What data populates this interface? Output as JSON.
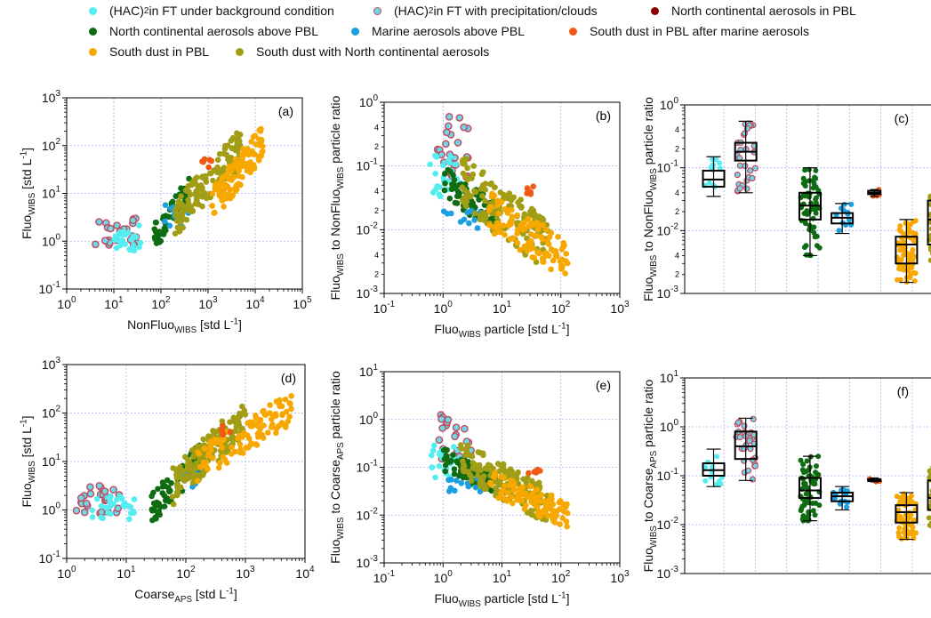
{
  "colors": {
    "hac_bg": "#55eef0",
    "hac_precip": "#6fd8e6",
    "ring": "#c04a60",
    "nc_pbl": "#8b0000",
    "nc_above": "#0f6c12",
    "marine": "#1a9fe0",
    "dust_after_marine": "#f05a14",
    "dust_pbl": "#f7a800",
    "dust_nc": "#a19d14",
    "grid": "#aab0ee"
  },
  "legend": [
    {
      "id": "hac_bg",
      "pre": "(HAC)",
      "sup": "2",
      "post": " in FT under background condition",
      "color": "#55eef0",
      "ring": false
    },
    {
      "id": "hac_precip",
      "pre": "(HAC)",
      "sup": "2",
      "post": " in FT with precipitation/clouds",
      "color": "#6fd8e6",
      "ring": true
    },
    {
      "id": "nc_pbl",
      "pre": "North continental aerosols in PBL",
      "sup": "",
      "post": "",
      "color": "#8b0000",
      "ring": false
    },
    {
      "id": "nc_above",
      "pre": "North continental aerosols above PBL",
      "sup": "",
      "post": "",
      "color": "#0f6c12",
      "ring": false
    },
    {
      "id": "marine",
      "pre": "Marine aerosols above PBL",
      "sup": "",
      "post": "",
      "color": "#1a9fe0",
      "ring": false
    },
    {
      "id": "dust_after_marine",
      "pre": "South dust in PBL after marine aerosols",
      "sup": "",
      "post": "",
      "color": "#f05a14",
      "ring": false
    },
    {
      "id": "dust_pbl",
      "pre": "South dust in PBL",
      "sup": "",
      "post": "",
      "color": "#f7a800",
      "ring": false
    },
    {
      "id": "dust_nc",
      "pre": "South dust with North continental aerosols",
      "sup": "",
      "post": "",
      "color": "#a19d14",
      "ring": false
    }
  ],
  "chart_data": [
    {
      "panel": "(a)",
      "type": "scatter",
      "log": true,
      "xlim": [
        1,
        100000
      ],
      "ylim": [
        0.1,
        1000
      ],
      "xticks": [
        "10^0",
        "10^1",
        "10^2",
        "10^3",
        "10^4",
        "10^5"
      ],
      "yticks": [
        "10^-1",
        "10^0",
        "10^1",
        "10^2",
        "10^3"
      ],
      "xlabel": "NonFluo_WIBS [std L^-1]",
      "ylabel": "Fluo_WIBS [std L^-1]",
      "clusters": [
        {
          "group": "hac_precip",
          "x": [
            4,
            30
          ],
          "y": [
            0.8,
            3.2
          ],
          "n": 26
        },
        {
          "group": "hac_bg",
          "x": [
            10,
            40
          ],
          "y": [
            0.6,
            2.2
          ],
          "n": 28
        },
        {
          "group": "nc_above",
          "x": [
            70,
            400
          ],
          "y": [
            1.2,
            12
          ],
          "n": 70
        },
        {
          "group": "marine",
          "x": [
            120,
            400
          ],
          "y": [
            2,
            6
          ],
          "n": 12
        },
        {
          "group": "dust_nc",
          "x": [
            200,
            5000
          ],
          "y": [
            3,
            90
          ],
          "n": 150
        },
        {
          "group": "dust_pbl",
          "x": [
            1200,
            15000
          ],
          "y": [
            6,
            130
          ],
          "n": 110
        },
        {
          "group": "dust_after_marine",
          "x": [
            700,
            1200
          ],
          "y": [
            35,
            60
          ],
          "n": 6
        }
      ]
    },
    {
      "panel": "(b)",
      "type": "scatter",
      "log": true,
      "xlim": [
        0.1,
        1000
      ],
      "ylim": [
        0.001,
        1
      ],
      "xticks": [
        "10^-1",
        "10^0",
        "10^1",
        "10^2",
        "10^3"
      ],
      "yticks": [
        "10^-3",
        "10^-2",
        "10^-1",
        "10^0"
      ],
      "xlabel": "Fluo_WIBS particle [std L^-1]",
      "ylabel": "Fluo_WIBS to NonFluo_WIBS particle ratio",
      "clusters": [
        {
          "group": "hac_precip",
          "x": [
            0.8,
            3
          ],
          "y": [
            0.06,
            0.6
          ],
          "n": 24
        },
        {
          "group": "hac_bg",
          "x": [
            0.6,
            2
          ],
          "y": [
            0.03,
            0.15
          ],
          "n": 22
        },
        {
          "group": "nc_above",
          "x": [
            1,
            8
          ],
          "y": [
            0.008,
            0.06
          ],
          "n": 70
        },
        {
          "group": "marine",
          "x": [
            1,
            5
          ],
          "y": [
            0.008,
            0.02
          ],
          "n": 12
        },
        {
          "group": "dust_nc",
          "x": [
            2,
            60
          ],
          "y": [
            0.002,
            0.06
          ],
          "n": 150
        },
        {
          "group": "dust_pbl",
          "x": [
            6,
            130
          ],
          "y": [
            0.0015,
            0.02
          ],
          "n": 110
        },
        {
          "group": "dust_after_marine",
          "x": [
            25,
            45
          ],
          "y": [
            0.035,
            0.05
          ],
          "n": 6
        }
      ]
    },
    {
      "panel": "(c)",
      "type": "box",
      "log": true,
      "ylim": [
        0.001,
        1
      ],
      "yticks": [
        "10^-3",
        "10^-2",
        "10^-1",
        "10^0"
      ],
      "ylabel": "Fluo_WIBS to NonFluo_WIBS particle ratio",
      "boxes": [
        {
          "group": "hac_bg",
          "min": 0.035,
          "q1": 0.05,
          "median": 0.065,
          "q3": 0.09,
          "max": 0.15
        },
        {
          "group": "hac_precip",
          "min": 0.04,
          "q1": 0.13,
          "median": 0.18,
          "q3": 0.25,
          "max": 0.55
        },
        {
          "group": "nc_above",
          "min": 0.004,
          "q1": 0.015,
          "median": 0.025,
          "q3": 0.04,
          "max": 0.1
        },
        {
          "group": "marine",
          "min": 0.009,
          "q1": 0.013,
          "median": 0.016,
          "q3": 0.019,
          "max": 0.027
        },
        {
          "group": "dust_after_marine",
          "min": 0.035,
          "q1": 0.038,
          "median": 0.04,
          "q3": 0.043,
          "max": 0.045
        },
        {
          "group": "dust_pbl",
          "min": 0.0015,
          "q1": 0.003,
          "median": 0.006,
          "q3": 0.008,
          "max": 0.015
        },
        {
          "group": "dust_nc",
          "min": 0.003,
          "q1": 0.006,
          "median": 0.015,
          "q3": 0.03,
          "max": 0.05
        }
      ]
    },
    {
      "panel": "(d)",
      "type": "scatter",
      "log": true,
      "xlim": [
        1,
        10000
      ],
      "ylim": [
        0.1,
        1000
      ],
      "xticks": [
        "10^0",
        "10^1",
        "10^2",
        "10^3",
        "10^4"
      ],
      "yticks": [
        "10^-1",
        "10^0",
        "10^1",
        "10^2",
        "10^3"
      ],
      "xlabel": "Coarse_APS  [std L^-1]",
      "ylabel": "Fluo_WIBS [std L^-1]",
      "clusters": [
        {
          "group": "hac_precip",
          "x": [
            1.3,
            8
          ],
          "y": [
            0.8,
            3.2
          ],
          "n": 26
        },
        {
          "group": "hac_bg",
          "x": [
            2.5,
            15
          ],
          "y": [
            0.6,
            2
          ],
          "n": 28
        },
        {
          "group": "nc_above",
          "x": [
            25,
            200
          ],
          "y": [
            1,
            15
          ],
          "n": 70
        },
        {
          "group": "marine",
          "x": [
            60,
            200
          ],
          "y": [
            3,
            7
          ],
          "n": 12
        },
        {
          "group": "dust_nc",
          "x": [
            60,
            1000
          ],
          "y": [
            3,
            80
          ],
          "n": 150
        },
        {
          "group": "dust_pbl",
          "x": [
            150,
            6000
          ],
          "y": [
            8,
            130
          ],
          "n": 110
        },
        {
          "group": "dust_after_marine",
          "x": [
            350,
            600
          ],
          "y": [
            35,
            55
          ],
          "n": 6
        }
      ]
    },
    {
      "panel": "(e)",
      "type": "scatter",
      "log": true,
      "xlim": [
        0.1,
        1000
      ],
      "ylim": [
        0.001,
        10
      ],
      "xticks": [
        "10^-1",
        "10^0",
        "10^1",
        "10^2",
        "10^3"
      ],
      "yticks": [
        "10^-3",
        "10^-2",
        "10^-1",
        "10^0",
        "10^1"
      ],
      "xlabel": "Fluo_WIBS particle [std L^-1]",
      "ylabel": "Fluo_WIBS to Coarse_APS particle ratio",
      "clusters": [
        {
          "group": "hac_precip",
          "x": [
            0.8,
            3
          ],
          "y": [
            0.15,
            1.5
          ],
          "n": 24
        },
        {
          "group": "hac_bg",
          "x": [
            0.6,
            2
          ],
          "y": [
            0.05,
            0.3
          ],
          "n": 22
        },
        {
          "group": "nc_above",
          "x": [
            1,
            8
          ],
          "y": [
            0.02,
            0.15
          ],
          "n": 70
        },
        {
          "group": "marine",
          "x": [
            1,
            5
          ],
          "y": [
            0.03,
            0.06
          ],
          "n": 12
        },
        {
          "group": "dust_nc",
          "x": [
            2,
            60
          ],
          "y": [
            0.006,
            0.15
          ],
          "n": 150
        },
        {
          "group": "dust_pbl",
          "x": [
            6,
            130
          ],
          "y": [
            0.005,
            0.05
          ],
          "n": 110
        },
        {
          "group": "dust_after_marine",
          "x": [
            25,
            45
          ],
          "y": [
            0.07,
            0.09
          ],
          "n": 6
        }
      ]
    },
    {
      "panel": "(f)",
      "type": "box",
      "log": true,
      "ylim": [
        0.001,
        10
      ],
      "yticks": [
        "10^-3",
        "10^-2",
        "10^-1",
        "10^0",
        "10^1"
      ],
      "ylabel": "Fluo_WIBS to Coarse_APS particle ratio",
      "boxes": [
        {
          "group": "hac_bg",
          "min": 0.06,
          "q1": 0.1,
          "median": 0.13,
          "q3": 0.18,
          "max": 0.35
        },
        {
          "group": "hac_precip",
          "min": 0.08,
          "q1": 0.22,
          "median": 0.4,
          "q3": 0.8,
          "max": 1.5
        },
        {
          "group": "nc_above",
          "min": 0.012,
          "q1": 0.035,
          "median": 0.05,
          "q3": 0.09,
          "max": 0.25
        },
        {
          "group": "marine",
          "min": 0.02,
          "q1": 0.03,
          "median": 0.038,
          "q3": 0.045,
          "max": 0.06
        },
        {
          "group": "dust_after_marine",
          "min": 0.075,
          "q1": 0.078,
          "median": 0.08,
          "q3": 0.085,
          "max": 0.09
        },
        {
          "group": "dust_pbl",
          "min": 0.005,
          "q1": 0.011,
          "median": 0.018,
          "q3": 0.025,
          "max": 0.045
        },
        {
          "group": "dust_nc",
          "min": 0.007,
          "q1": 0.02,
          "median": 0.035,
          "q3": 0.08,
          "max": 0.15
        }
      ]
    }
  ]
}
